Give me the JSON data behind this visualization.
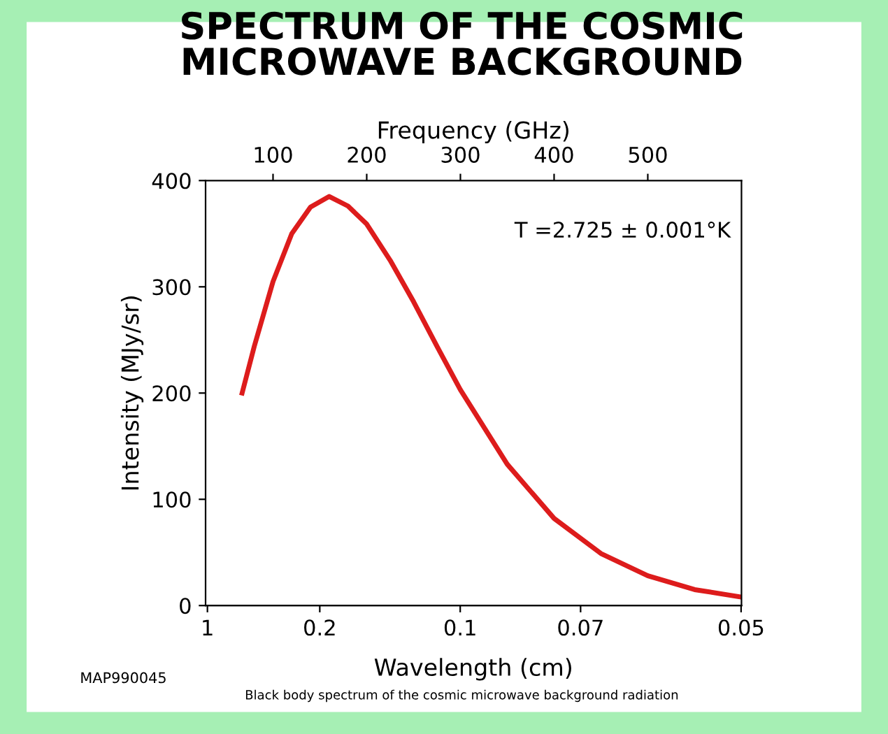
{
  "chart_data": {
    "type": "line",
    "title": "SPECTRUM OF THE COSMIC\nMICROWAVE BACKGROUND",
    "xlabel": "Frequency (GHz)",
    "x2label": "Wavelength (cm)",
    "ylabel": "Intensity (MJy/sr)",
    "x": [
      67,
      80,
      100,
      120,
      140,
      160,
      180,
      200,
      225,
      250,
      275,
      300,
      350,
      400,
      450,
      500,
      550,
      600
    ],
    "series": [
      {
        "color": "#dd1c1c",
        "values": [
          200,
          244,
          305,
          350,
          375,
          385,
          376,
          359,
          325,
          286,
          244,
          203,
          133,
          82,
          49,
          28,
          15,
          8
        ]
      }
    ],
    "xlim": [
      28,
      600
    ],
    "xticks": [
      100,
      200,
      300,
      400,
      500
    ],
    "ylim": [
      0,
      400
    ],
    "yticks": [
      0,
      100,
      200,
      300,
      400
    ],
    "grid": false,
    "legend": false,
    "marker": "none",
    "line_style": "solid",
    "annotations": [
      "1",
      "0.2",
      "0.1",
      "0.07",
      "0.05",
      "T =2.725 ± 0.001°K",
      "MAP990045",
      "Black body spectrum of the cosmic microwave background radiation"
    ]
  }
}
